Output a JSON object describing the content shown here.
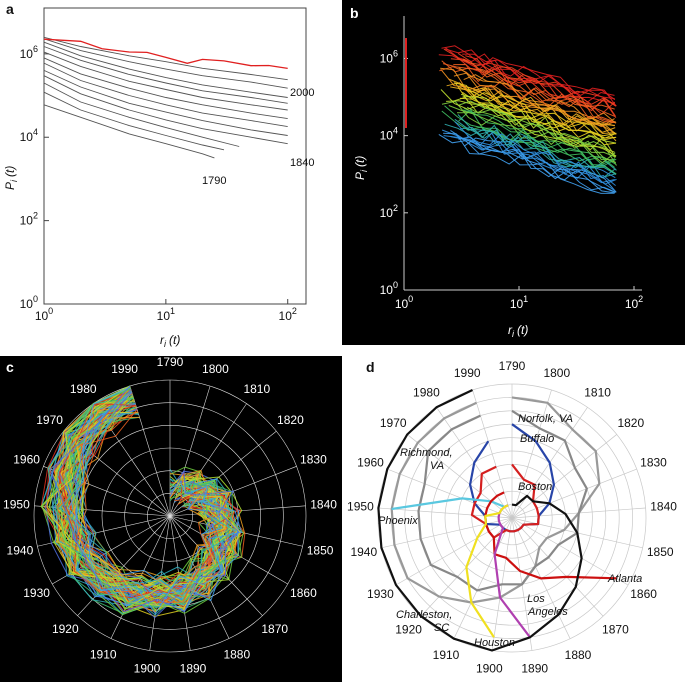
{
  "panels": {
    "a": {
      "label": "a",
      "ylabel_main": "P",
      "ylabel_sub": "i",
      "ylabel_paren": "(t)",
      "xlabel_main": "r",
      "xlabel_sub": "i",
      "xlabel_paren": "(t)",
      "x_ticks": [
        {
          "base": "10",
          "exp": "0"
        },
        {
          "base": "10",
          "exp": "1"
        },
        {
          "base": "10",
          "exp": "2"
        }
      ],
      "y_ticks": [
        {
          "base": "10",
          "exp": "0"
        },
        {
          "base": "10",
          "exp": "2"
        },
        {
          "base": "10",
          "exp": "4"
        },
        {
          "base": "10",
          "exp": "6"
        }
      ],
      "annotations": [
        "2000",
        "1840",
        "1790"
      ]
    },
    "b": {
      "label": "b",
      "ylabel_main": "P",
      "ylabel_sub": "i",
      "ylabel_paren": "(t)",
      "xlabel_main": "r",
      "xlabel_sub": "i",
      "xlabel_paren": "(t)",
      "x_ticks": [
        {
          "base": "10",
          "exp": "0"
        },
        {
          "base": "10",
          "exp": "1"
        },
        {
          "base": "10",
          "exp": "2"
        }
      ],
      "y_ticks": [
        {
          "base": "10",
          "exp": "0"
        },
        {
          "base": "10",
          "exp": "2"
        },
        {
          "base": "10",
          "exp": "4"
        },
        {
          "base": "10",
          "exp": "6"
        }
      ]
    },
    "c": {
      "label": "c",
      "years": [
        "1790",
        "1800",
        "1810",
        "1820",
        "1830",
        "1840",
        "1850",
        "1860",
        "1870",
        "1880",
        "1890",
        "1900",
        "1910",
        "1920",
        "1930",
        "1940",
        "1950",
        "1960",
        "1970",
        "1980",
        "1990"
      ]
    },
    "d": {
      "label": "d",
      "years": [
        "1790",
        "1800",
        "1810",
        "1820",
        "1830",
        "1840",
        "1850",
        "1860",
        "1870",
        "1880",
        "1890",
        "1900",
        "1910",
        "1920",
        "1930",
        "1940",
        "1950",
        "1960",
        "1970",
        "1980",
        "1990"
      ],
      "cities": [
        {
          "name": "Norfolk, VA",
          "color": "#999999"
        },
        {
          "name": "Buffalo",
          "color": "#2845a8"
        },
        {
          "name": "Richmond, VA",
          "color": "#888888"
        },
        {
          "name": "Boston",
          "color": "#d42020"
        },
        {
          "name": "Phoenix",
          "color": "#5ac8e0"
        },
        {
          "name": "Atlanta",
          "color": "#cc1010"
        },
        {
          "name": "Los Angeles",
          "color": "#b040b0"
        },
        {
          "name": "Charleston, SC",
          "color": "#111111"
        },
        {
          "name": "Houston",
          "color": "#f0e020"
        }
      ]
    }
  },
  "chart_data": [
    {
      "type": "line",
      "panel": "a",
      "title": "",
      "xlabel": "r_i (t)",
      "ylabel": "P_i (t)",
      "x_scale": "log",
      "y_scale": "log",
      "xlim": [
        1,
        100
      ],
      "ylim": [
        1,
        10000000
      ],
      "series": [
        {
          "x": [
            1,
            2,
            5,
            10,
            20,
            50,
            100
          ],
          "y": [
            2500000,
            1500000,
            900000,
            650000,
            450000,
            320000,
            240000
          ]
        },
        {
          "x": [
            1,
            2,
            5,
            10,
            20,
            50,
            100
          ],
          "y": [
            2300000,
            1200000,
            650000,
            430000,
            300000,
            210000,
            150000
          ]
        },
        {
          "x": [
            1,
            2,
            5,
            10,
            20,
            50,
            100
          ],
          "y": [
            1900000,
            900000,
            430000,
            270000,
            180000,
            120000,
            90000
          ]
        },
        {
          "x": [
            1,
            2,
            5,
            10,
            20,
            50,
            100
          ],
          "y": [
            1500000,
            700000,
            320000,
            200000,
            130000,
            90000,
            65000
          ]
        },
        {
          "x": [
            1,
            2,
            5,
            10,
            20,
            50,
            100
          ],
          "y": [
            1100000,
            500000,
            220000,
            140000,
            90000,
            60000,
            45000
          ]
        },
        {
          "x": [
            1,
            2,
            5,
            10,
            20,
            50,
            100
          ],
          "y": [
            800000,
            330000,
            150000,
            90000,
            60000,
            38000,
            28000
          ]
        },
        {
          "x": [
            1,
            2,
            5,
            10,
            20,
            50,
            100
          ],
          "y": [
            600000,
            230000,
            100000,
            60000,
            38000,
            25000,
            18000
          ]
        },
        {
          "x": [
            1,
            2,
            5,
            10,
            20,
            50,
            100
          ],
          "y": [
            400000,
            160000,
            65000,
            40000,
            25000,
            15000,
            11000
          ]
        },
        {
          "x": [
            1,
            2,
            5,
            10,
            20,
            50,
            100
          ],
          "y": [
            300000,
            110000,
            45000,
            26000,
            16000,
            10000,
            7000
          ]
        },
        {
          "x": [
            1,
            2,
            5,
            10,
            20,
            40
          ],
          "y": [
            200000,
            70000,
            30000,
            17000,
            10000,
            6000
          ]
        },
        {
          "x": [
            1,
            2,
            5,
            10,
            20,
            30
          ],
          "y": [
            120000,
            45000,
            19000,
            11000,
            6500,
            5000
          ]
        },
        {
          "x": [
            1,
            2,
            5,
            10,
            20,
            25
          ],
          "y": [
            60000,
            30000,
            12000,
            7000,
            4000,
            3200
          ]
        },
        {
          "name": "2000",
          "x": [
            1,
            2,
            3,
            5,
            7,
            10,
            15,
            20,
            30,
            50,
            70,
            100
          ],
          "y": [
            2600000,
            1800000,
            1400000,
            1200000,
            900000,
            800000,
            700000,
            600000,
            550000,
            500000,
            450000,
            400000
          ]
        }
      ],
      "annotations": [
        "2000",
        "1840",
        "1790"
      ]
    },
    {
      "type": "line",
      "panel": "b",
      "title": "",
      "xlabel": "r_i (t)",
      "ylabel": "P_i (t)",
      "x_scale": "log",
      "y_scale": "log",
      "xlim": [
        1,
        100
      ],
      "ylim": [
        1,
        10000000
      ],
      "background": "#000000",
      "series": []
    },
    {
      "type": "line",
      "panel": "c",
      "title": "",
      "polar": true,
      "background": "#000000",
      "angle_categories": [
        "1790",
        "1800",
        "1810",
        "1820",
        "1830",
        "1840",
        "1850",
        "1860",
        "1870",
        "1880",
        "1890",
        "1900",
        "1910",
        "1920",
        "1930",
        "1940",
        "1950",
        "1960",
        "1970",
        "1980",
        "1990"
      ],
      "series": []
    },
    {
      "type": "line",
      "panel": "d",
      "title": "",
      "polar": true,
      "angle_categories": [
        "1790",
        "1800",
        "1810",
        "1820",
        "1830",
        "1840",
        "1850",
        "1860",
        "1870",
        "1880",
        "1890",
        "1900",
        "1910",
        "1920",
        "1930",
        "1940",
        "1950",
        "1960",
        "1970",
        "1980",
        "1990"
      ],
      "series": [
        {
          "name": "Norfolk, VA",
          "color": "#999999",
          "r": [
            9,
            9,
            8,
            8,
            7,
            5,
            4,
            3,
            3,
            4,
            5,
            6,
            7,
            8,
            9,
            9,
            9,
            9,
            9,
            9,
            9
          ]
        },
        {
          "name": "Buffalo",
          "color": "#2845a8",
          "r": [
            7,
            6,
            5,
            4,
            3,
            2,
            2,
            1,
            1,
            1,
            1,
            1,
            1,
            1,
            1,
            2,
            2,
            3,
            4,
            5,
            6
          ]
        },
        {
          "name": "Richmond, VA",
          "color": "#888888",
          "r": [
            8,
            7,
            7,
            6,
            6,
            5,
            5,
            4,
            4,
            4,
            5,
            5,
            6,
            6,
            7,
            7,
            7,
            7,
            8,
            8,
            8
          ]
        },
        {
          "name": "Boston",
          "color": "#d42020",
          "r": [
            4,
            3,
            3,
            2,
            2,
            2,
            2,
            1,
            1,
            1,
            1,
            1,
            1,
            2,
            2,
            2,
            3,
            3,
            3,
            4,
            4
          ]
        },
        {
          "name": "Phoenix",
          "color": "#5ac8e0",
          "r": [
            0,
            0,
            0,
            0,
            0,
            0,
            0,
            0,
            0,
            0,
            0,
            0,
            0,
            0,
            0,
            0,
            9,
            4,
            2,
            1,
            1
          ]
        },
        {
          "name": "Atlanta",
          "color": "#cc1010",
          "r": [
            0,
            0,
            0,
            0,
            0,
            0,
            0,
            9,
            6,
            5,
            4,
            3,
            3,
            2,
            2,
            2,
            2,
            2,
            2,
            2,
            2
          ]
        },
        {
          "name": "Los Angeles",
          "color": "#b040b0",
          "r": [
            0,
            0,
            0,
            0,
            0,
            0,
            0,
            0,
            0,
            0,
            9,
            6,
            3,
            1,
            1,
            1,
            1,
            1,
            1,
            1,
            1
          ]
        },
        {
          "name": "Charleston, SC",
          "color": "#111111",
          "r": [
            1,
            1,
            2,
            2,
            3,
            4,
            5,
            6,
            7,
            8,
            9,
            10,
            10,
            10,
            10,
            10,
            10,
            10,
            10,
            10,
            10
          ]
        },
        {
          "name": "Houston",
          "color": "#f0e020",
          "r": [
            0,
            0,
            0,
            0,
            0,
            0,
            0,
            0,
            0,
            0,
            0,
            9,
            7,
            5,
            3,
            2,
            2,
            1,
            1,
            1,
            1
          ]
        }
      ]
    }
  ]
}
